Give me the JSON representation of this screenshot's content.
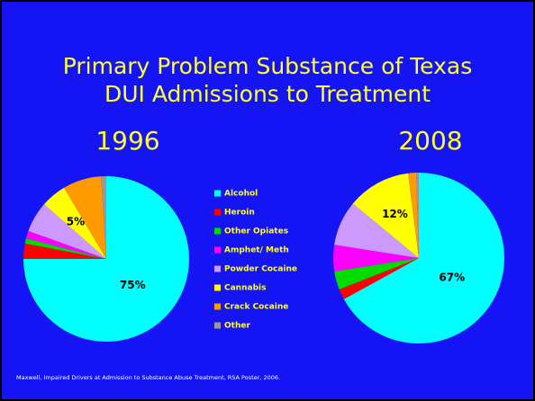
{
  "title": [
    "Primary Problem Substance of Texas",
    "DUI Admissions to Treatment"
  ],
  "source": "Maxwell, Impaired Drivers at Admission to Substance Abuse Treatment, RSA Poster, 2006.",
  "legend": {
    "categories": [
      "Alcohol",
      "Heroin",
      "Other Opiates",
      "Amphet/ Meth",
      "Powder Cocaine",
      "Cannabis",
      "Crack Cocaine",
      "Other"
    ],
    "colors": [
      "#00ffff",
      "#ff0000",
      "#00dd00",
      "#ff00ff",
      "#cc99ff",
      "#ffff00",
      "#ff9900",
      "#999999"
    ]
  },
  "chart_data": [
    {
      "type": "pie",
      "title": "1996",
      "values": [
        75,
        3,
        1,
        1.5,
        6,
        5,
        7.5,
        1
      ],
      "value_labels": [
        "75%",
        null,
        null,
        null,
        null,
        "5%",
        null,
        null
      ]
    },
    {
      "type": "pie",
      "title": "2008",
      "values": [
        67,
        2,
        3.5,
        5,
        8.5,
        12,
        1.5,
        0.5
      ],
      "value_labels": [
        "67%",
        null,
        null,
        null,
        null,
        "12%",
        null,
        null
      ]
    }
  ]
}
